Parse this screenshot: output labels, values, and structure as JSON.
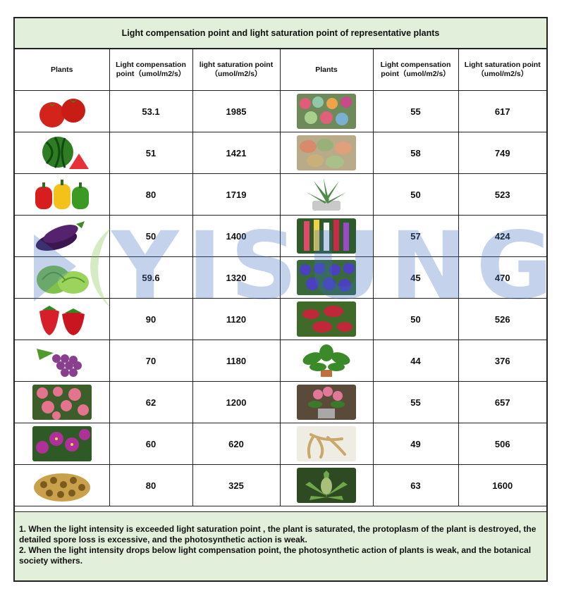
{
  "title": "Light compensation point and light saturation point of representative plants",
  "headers": {
    "plants_left": "Plants",
    "comp_left": "Light compensation point（umol/m2/s）",
    "sat_left": "light saturation point（umol/m2/s）",
    "plants_right": "Plants",
    "comp_right": "Light compensation point（umol/m2/s）",
    "sat_right": "Light saturation point（umol/m2/s）"
  },
  "rows": [
    {
      "left_plant": "tomato-image",
      "left_comp": "53.1",
      "left_sat": "1985",
      "right_plant": "succulents-image",
      "right_comp": "55",
      "right_sat": "617"
    },
    {
      "left_plant": "watermelon-image",
      "left_comp": "51",
      "left_sat": "1421",
      "right_plant": "living-stones-image",
      "right_comp": "58",
      "right_sat": "749"
    },
    {
      "left_plant": "bell-pepper-image",
      "left_comp": "80",
      "left_sat": "1719",
      "right_plant": "aloe-image",
      "right_comp": "50",
      "right_sat": "523"
    },
    {
      "left_plant": "eggplant-image",
      "left_comp": "50",
      "left_sat": "1400",
      "right_plant": "gladiolus-image",
      "right_comp": "57",
      "right_sat": "424"
    },
    {
      "left_plant": "lettuce-image",
      "left_comp": "59.6",
      "left_sat": "1320",
      "right_plant": "african-violet-image",
      "right_comp": "45",
      "right_sat": "470"
    },
    {
      "left_plant": "strawberry-image",
      "left_comp": "90",
      "left_sat": "1120",
      "right_plant": "venus-flytrap-image",
      "right_comp": "50",
      "right_sat": "526"
    },
    {
      "left_plant": "grapes-image",
      "left_comp": "70",
      "left_sat": "1180",
      "right_plant": "pothos-image",
      "right_comp": "44",
      "right_sat": "376"
    },
    {
      "left_plant": "roses-image",
      "left_comp": "62",
      "left_sat": "1200",
      "right_plant": "potted-flower-image",
      "right_comp": "55",
      "right_sat": "657"
    },
    {
      "left_plant": "orchid-image",
      "left_comp": "60",
      "left_sat": "620",
      "right_plant": "ginseng-image",
      "right_comp": "49",
      "right_sat": "506"
    },
    {
      "left_plant": "mushroom-slices-image",
      "left_comp": "80",
      "left_sat": "325",
      "right_plant": "cannabis-image",
      "right_comp": "63",
      "right_sat": "1600"
    }
  ],
  "notes": [
    "1. When the light intensity is exceeded light saturation point , the plant is saturated, the protoplasm of the plant is destroyed, the detailed spore loss is excessive, and the photosynthetic action is weak.",
    " 2. When the light intensity drops below light compensation point, the photosynthetic action of plants is weak, and the botanical society withers."
  ],
  "watermark": "YISUNG"
}
